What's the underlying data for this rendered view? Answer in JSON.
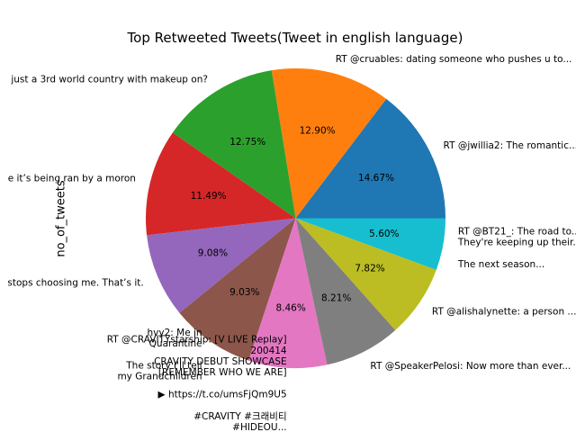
{
  "chart_data": {
    "type": "pie",
    "title": "Top Retweeted Tweets(Tweet in english language)",
    "ylabel": "no_of_tweets",
    "start_angle_deg": 0,
    "direction": "counterclockwise",
    "autopct_format": "%.2f%%",
    "slices": [
      {
        "label": "RT @jwillia2: The romantic...",
        "value": 14.67,
        "pct_label": "14.67%",
        "color": "#1f77b4"
      },
      {
        "label": "RT @cruables: dating someone who pushes u to...",
        "value": 12.9,
        "pct_label": "12.90%",
        "color": "#ff7f0e"
      },
      {
        "label": "just a 3rd world country with makeup on?",
        "value": 12.75,
        "pct_label": "12.75%",
        "color": "#2ca02c"
      },
      {
        "label": "e it’s being ran by a moron",
        "value": 11.49,
        "pct_label": "11.49%",
        "color": "#d62728"
      },
      {
        "label": "stops choosing me. That’s it.",
        "value": 9.08,
        "pct_label": "9.08%",
        "color": "#9467bd"
      },
      {
        "label": "hvy2: Me in\nQuarantine\n\nThe story I'll tell\nmy Grandchildren",
        "value": 9.03,
        "pct_label": "9.03%",
        "color": "#8c564b"
      },
      {
        "label": "RT @CRAVITYstarship: [V LIVE Replay]\n200414\nCRAVITY DEBUT SHOWCASE\n[REMEMBER WHO WE ARE]\n\n▶ https://t.co/umsFjQm9U5\n\n#CRAVITY #크래비티\n#HIDEOU...",
        "value": 8.46,
        "pct_label": "8.46%",
        "color": "#e377c2"
      },
      {
        "label": "RT @SpeakerPelosi: Now more than ever...",
        "value": 8.21,
        "pct_label": "8.21%",
        "color": "#7f7f7f"
      },
      {
        "label": "RT @alishalynette: a person ...",
        "value": 7.82,
        "pct_label": "7.82%",
        "color": "#bcbd22"
      },
      {
        "label": "RT @BT21_: The road to...\nThey're keeping up their...\n\nThe next season...",
        "value": 5.6,
        "pct_label": "5.60%",
        "color": "#17becf"
      }
    ]
  }
}
